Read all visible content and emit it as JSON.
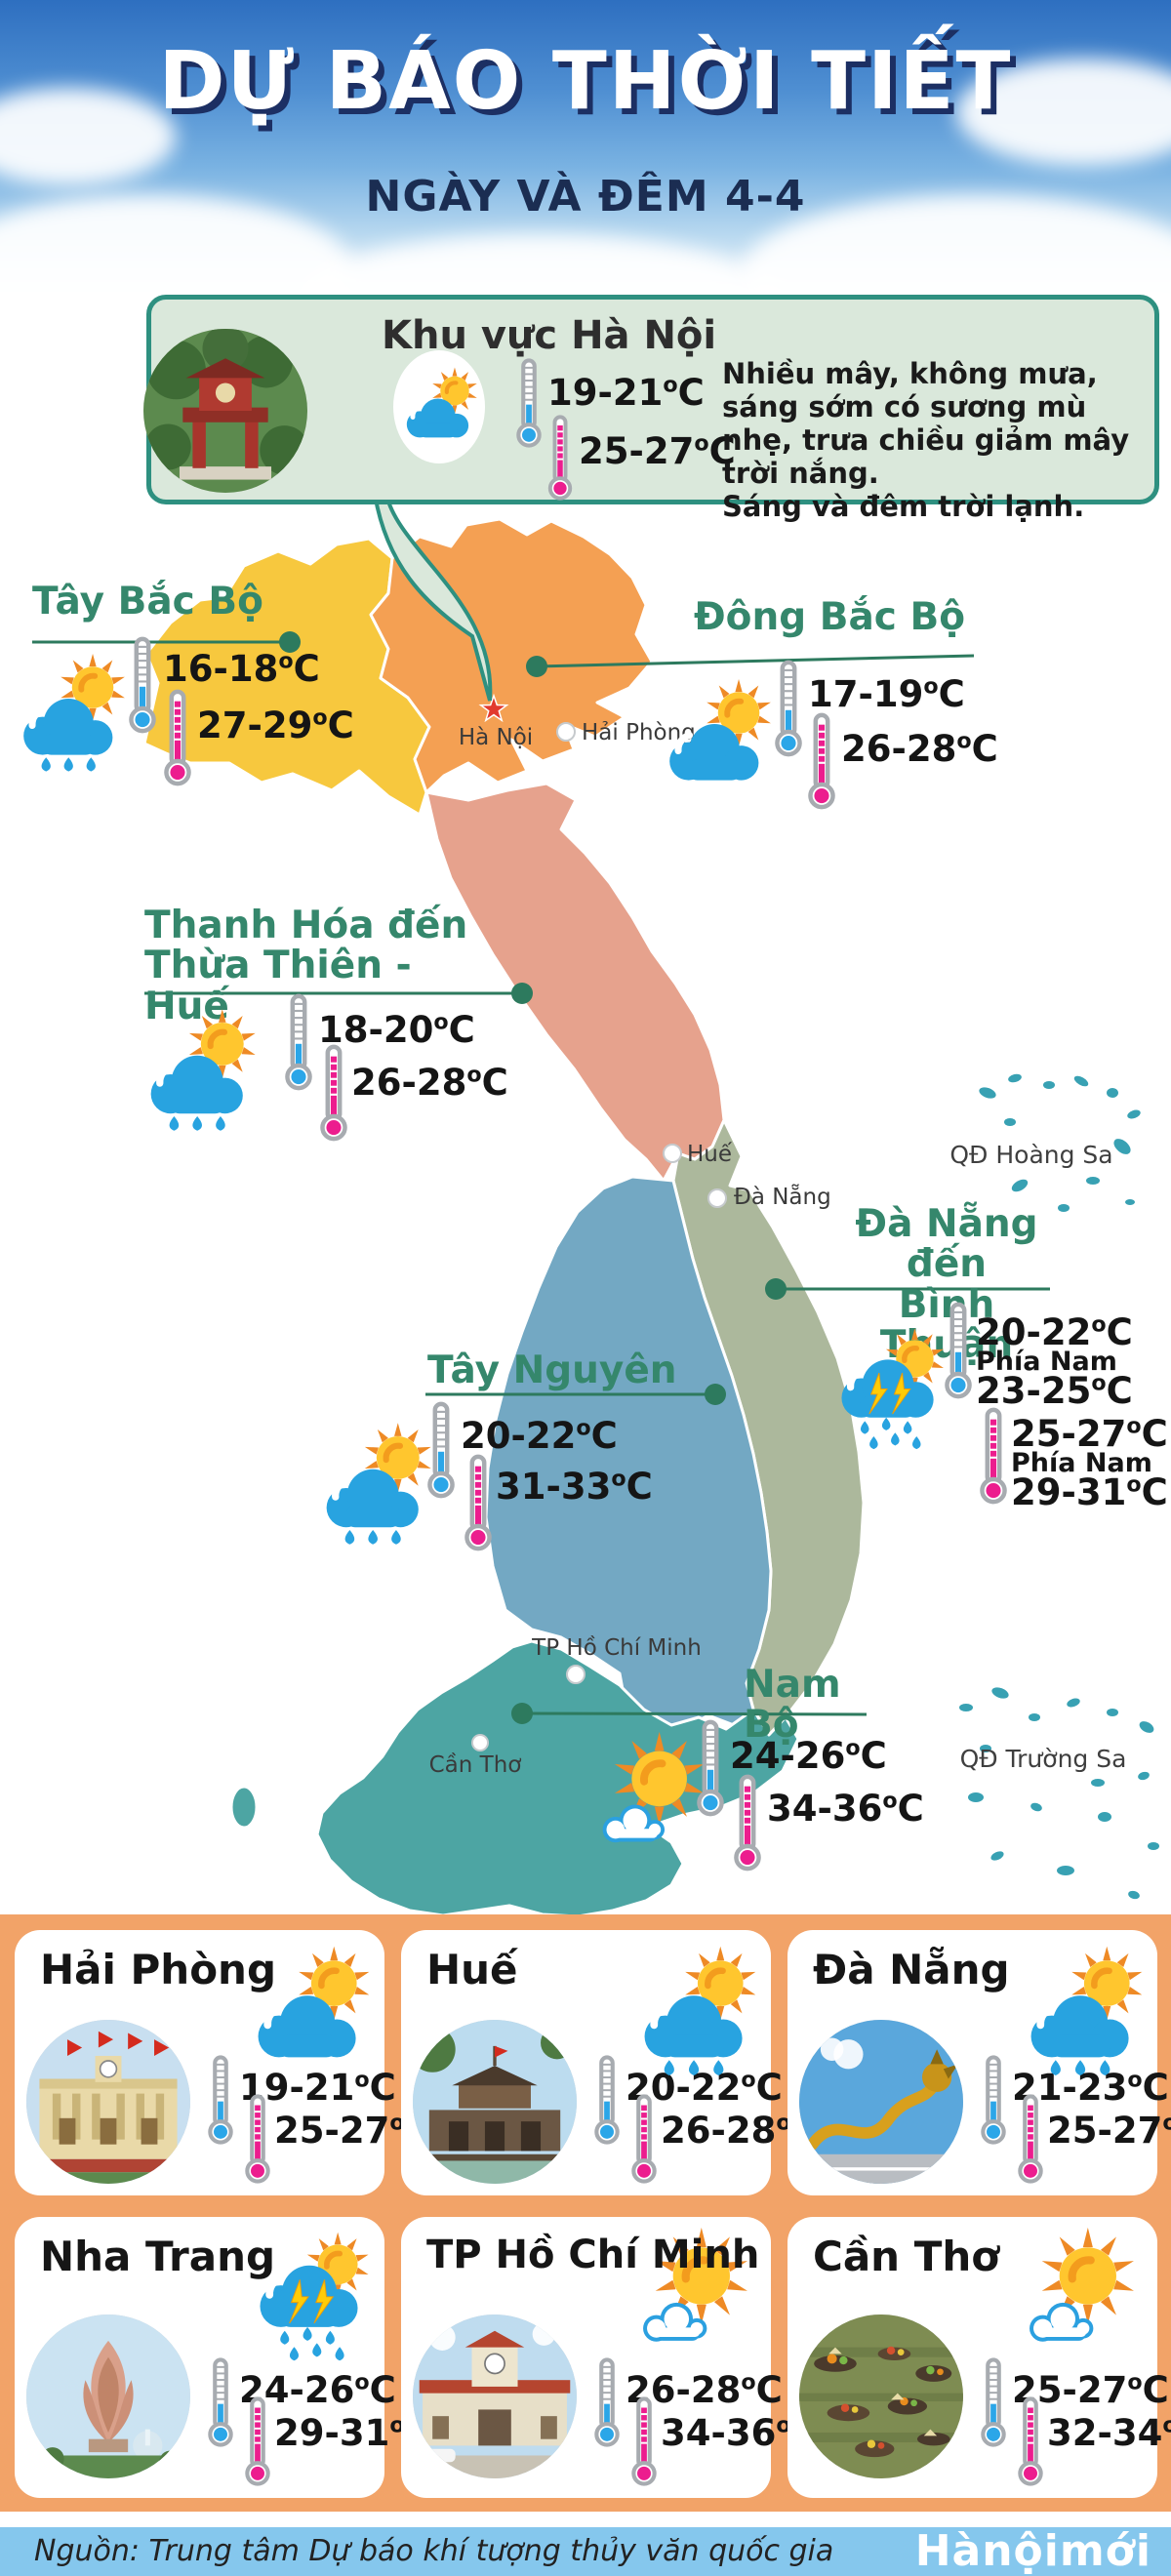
{
  "header": {
    "title": "DỰ BÁO THỜI TIẾT",
    "subtitle": "NGÀY VÀ ĐÊM 4-4"
  },
  "temp_unit": "oC",
  "hanoi_box": {
    "title": "Khu vực Hà Nội",
    "icon": "cloud-sun",
    "photo": "temple-of-literature",
    "temp_low": "19-21",
    "temp_high": "25-27",
    "description_lines": [
      "Nhiều mây, không mưa,",
      "sáng sớm có sương mù",
      "nhẹ, trưa chiều giảm mây",
      "trời nắng.",
      "Sáng và đêm trời lạnh."
    ]
  },
  "regions": [
    {
      "name_lines": [
        "Tây Bắc Bộ"
      ],
      "icon": "cloud-sun-rain",
      "temp_low": "16-18",
      "temp_high": "27-29"
    },
    {
      "name_lines": [
        "Đông Bắc Bộ"
      ],
      "icon": "cloud-sun",
      "temp_low": "17-19",
      "temp_high": "26-28"
    },
    {
      "name_lines": [
        "Thanh Hóa đến",
        "Thừa Thiên - Huế"
      ],
      "icon": "cloud-sun-rain",
      "temp_low": "18-20",
      "temp_high": "26-28"
    },
    {
      "name_lines": [
        "Đà Nẵng đến",
        "Bình Thuận"
      ],
      "icon": "storm-sun-rain",
      "temp_low": "20-22",
      "temp_high": "25-27",
      "south_label": "Phía Nam",
      "temp_low_south": "23-25",
      "temp_high_south": "29-31"
    },
    {
      "name_lines": [
        "Tây Nguyên"
      ],
      "icon": "cloud-sun-rain",
      "temp_low": "20-22",
      "temp_high": "31-33"
    },
    {
      "name_lines": [
        "Nam Bộ"
      ],
      "icon": "sun-cloud",
      "temp_low": "24-26",
      "temp_high": "34-36"
    }
  ],
  "map": {
    "cities": {
      "hanoi": "Hà Nội",
      "haiphong": "Hải Phòng",
      "hue": "Huế",
      "danang": "Đà Nẵng",
      "hcmc": "TP Hồ Chí Minh",
      "cantho": "Cần Thơ"
    },
    "archipelagos": {
      "hoangsa": "QĐ Hoàng Sa",
      "truongsa": "QĐ Trường Sa"
    }
  },
  "cities": [
    {
      "name": "Hải Phòng",
      "icon": "cloud-sun",
      "photo": "opera-house",
      "temp_low": "19-21",
      "temp_high": "25-27"
    },
    {
      "name": "Huế",
      "icon": "cloud-sun-rain",
      "photo": "imperial-city",
      "temp_low": "20-22",
      "temp_high": "26-28"
    },
    {
      "name": "Đà Nẵng",
      "icon": "cloud-sun-rain",
      "photo": "dragon-bridge",
      "temp_low": "21-23",
      "temp_high": "25-27"
    },
    {
      "name": "Nha Trang",
      "icon": "storm-sun-rain",
      "photo": "tram-huong-tower",
      "temp_low": "24-26",
      "temp_high": "29-31"
    },
    {
      "name": "TP Hồ Chí Minh",
      "icon": "sun-cloud",
      "photo": "ben-thanh-market",
      "temp_low": "26-28",
      "temp_high": "34-36"
    },
    {
      "name": "Cần Thơ",
      "icon": "sun-cloud",
      "photo": "floating-market",
      "temp_low": "25-27",
      "temp_high": "32-34"
    }
  ],
  "footer": {
    "source": "Nguồn: Trung tâm Dự báo khí tượng thủy văn quốc gia",
    "logo": "Hànộimới"
  },
  "colors": {
    "low": "#2BA6E8",
    "high": "#EC1D8E",
    "label_green": "#35876C",
    "connector": "#2D7A5E",
    "map_yellow": "#F7C83E",
    "map_orange": "#F4A053",
    "map_salmon": "#E6A28D",
    "map_sage": "#ACB89C",
    "map_blue": "#73A8C3",
    "map_teal": "#4DA5A3",
    "island": "#38A1B3",
    "box_bg": "#DAE8DB",
    "box_border": "#2E9080",
    "band_orange": "#F2A368",
    "footer_blue": "#85C7ED"
  }
}
